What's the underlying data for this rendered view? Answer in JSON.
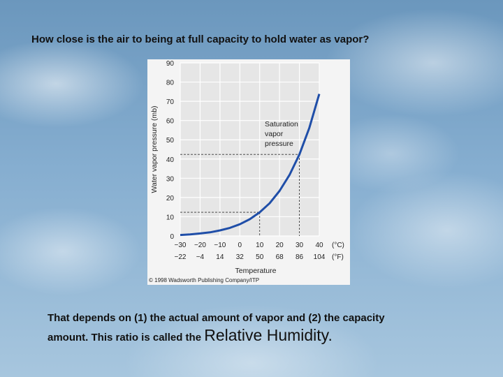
{
  "slide": {
    "title": "How close is the air to being at full capacity to hold water as vapor?",
    "caption_line1": "That depends on (1) the actual amount of vapor and (2) the capacity",
    "caption_line2": "amount.  This ratio is called the ",
    "caption_emphasis": "Relative Humidity."
  },
  "chart_data": {
    "type": "line",
    "ylabel": "Water vapor pressure (mb)",
    "xlabel": "Temperature",
    "annotation": "Saturation vapor pressure",
    "copyright": "© 1998 Wadsworth Publishing Company/ITP",
    "ylim": [
      0,
      90
    ],
    "xlim": [
      -30,
      40
    ],
    "yticks": [
      0,
      10,
      20,
      30,
      40,
      50,
      60,
      70,
      80,
      90
    ],
    "xticks_c": [
      -30,
      -20,
      -10,
      0,
      10,
      20,
      30,
      40
    ],
    "xticks_f": [
      "-22",
      "-4",
      "14",
      "32",
      "50",
      "68",
      "86",
      "104"
    ],
    "unit_c": "(°C)",
    "unit_f": "(°F)",
    "grid": true,
    "series": [
      {
        "values": [
          {
            "x": -30,
            "y": 0.5
          },
          {
            "x": -25,
            "y": 0.8
          },
          {
            "x": -20,
            "y": 1.3
          },
          {
            "x": -15,
            "y": 1.9
          },
          {
            "x": -10,
            "y": 2.9
          },
          {
            "x": -5,
            "y": 4.2
          },
          {
            "x": 0,
            "y": 6.1
          },
          {
            "x": 5,
            "y": 8.7
          },
          {
            "x": 10,
            "y": 12.3
          },
          {
            "x": 15,
            "y": 17.0
          },
          {
            "x": 20,
            "y": 23.4
          },
          {
            "x": 25,
            "y": 31.7
          },
          {
            "x": 30,
            "y": 42.4
          },
          {
            "x": 35,
            "y": 56.2
          },
          {
            "x": 40,
            "y": 73.8
          }
        ]
      }
    ],
    "reference_points": [
      {
        "x": 10,
        "y": 12.3
      },
      {
        "x": 30,
        "y": 42.4
      }
    ]
  }
}
